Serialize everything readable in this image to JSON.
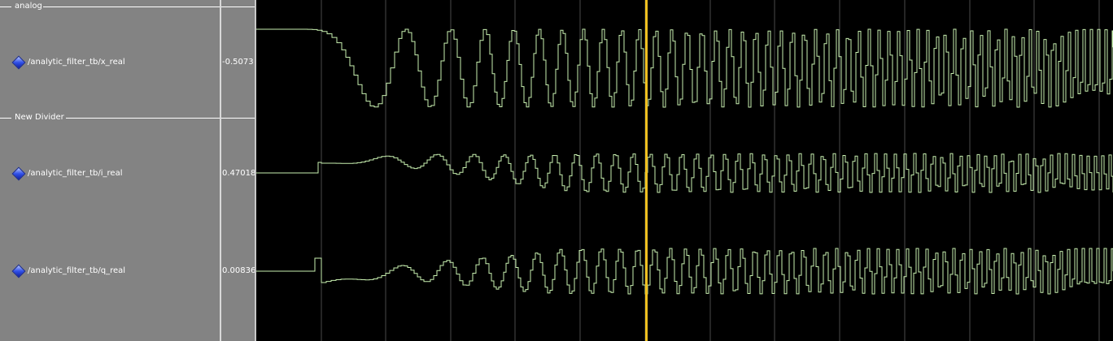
{
  "groups": [
    {
      "label": "analog"
    },
    {
      "label": "New Divider"
    }
  ],
  "signals": [
    {
      "name": "/analytic_filter_tb/x_real",
      "value": "-0.5073"
    },
    {
      "name": "/analytic_filter_tb/i_real",
      "value": "0.47018"
    },
    {
      "name": "/analytic_filter_tb/q_real",
      "value": "0.00836"
    }
  ],
  "icons": {
    "signal": "analog-signal-diamond-icon"
  },
  "colors": {
    "pane_bg": "#838383",
    "wave_bg": "#000000",
    "waveform": "#c8f0b0",
    "grid": "#4a4a4a",
    "cursor": "#f0c020"
  },
  "waveforms": {
    "cursor_time_fraction": 0.455
  }
}
